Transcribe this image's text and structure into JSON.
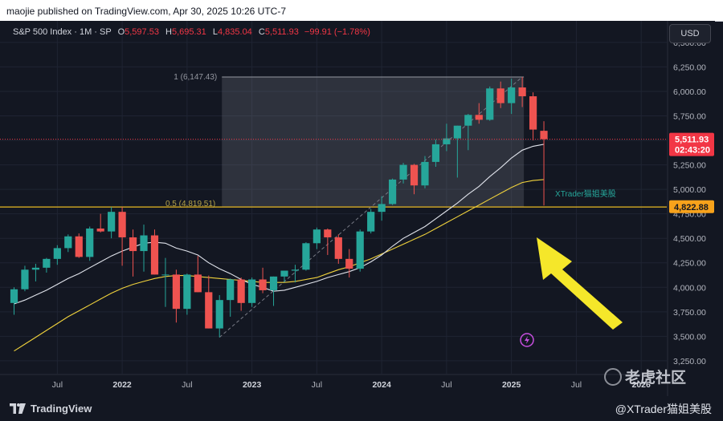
{
  "publisher_line": "maojie published on TradingView.com, Apr 30, 2025 10:26 UTC-7",
  "legend": {
    "symbol": "S&P 500 Index · 1M · SP",
    "o_label": "O",
    "o": "5,597.53",
    "h_label": "H",
    "h": "5,695.31",
    "l_label": "L",
    "l": "4,835.04",
    "c_label": "C",
    "c": "5,511.93",
    "chg": "−99.91 (−1.78%)"
  },
  "currency_button": "USD",
  "footer": {
    "brand": "TradingView",
    "handle": "@XTrader猫姐美股"
  },
  "watermark_site": "老虎社区",
  "colors": {
    "bg": "#131722",
    "up": "#26a69a",
    "down": "#ef5350",
    "ma_fast": "#e0e3eb",
    "ma_slow": "#f0d23c",
    "level": "#e8b923",
    "arrow": "#f5e72a",
    "price_badge": "#f23645",
    "level_badge": "#f7a21b"
  },
  "chart_data": {
    "type": "candlestick",
    "interval": "1M",
    "ylim": [
      3200,
      6720
    ],
    "y_ticks": [
      3250,
      3500,
      3750,
      4000,
      4250,
      4500,
      4750,
      5000,
      5250,
      5500,
      5750,
      6000,
      6250,
      6500
    ],
    "y_tick_labels": [
      "3,250.00",
      "3,500.00",
      "3,750.00",
      "4,000.00",
      "4,250.00",
      "4,500.00",
      "4,750.00",
      "5,000.00",
      "5,250.00",
      "5,500.00",
      "5,750.00",
      "6,000.00",
      "6,250.00",
      "6,500.00"
    ],
    "x_ticks": [
      {
        "label": "Jul",
        "date": "2021-07",
        "bold": false
      },
      {
        "label": "2022",
        "date": "2022-01",
        "bold": true
      },
      {
        "label": "Jul",
        "date": "2022-07",
        "bold": false
      },
      {
        "label": "2023",
        "date": "2023-01",
        "bold": true
      },
      {
        "label": "Jul",
        "date": "2023-07",
        "bold": false
      },
      {
        "label": "2024",
        "date": "2024-01",
        "bold": true
      },
      {
        "label": "Jul",
        "date": "2024-07",
        "bold": false
      },
      {
        "label": "2025",
        "date": "2025-01",
        "bold": true
      },
      {
        "label": "Jul",
        "date": "2025-07",
        "bold": false
      },
      {
        "label": "2026",
        "date": "2026-01",
        "bold": true
      }
    ],
    "first_month": "2021-03",
    "candles": [
      {
        "date": "2021-03",
        "o": 3840,
        "h": 4000,
        "l": 3720,
        "c": 3980
      },
      {
        "date": "2021-04",
        "o": 3980,
        "h": 4220,
        "l": 3960,
        "c": 4180
      },
      {
        "date": "2021-05",
        "o": 4180,
        "h": 4240,
        "l": 4060,
        "c": 4200
      },
      {
        "date": "2021-06",
        "o": 4200,
        "h": 4300,
        "l": 4150,
        "c": 4290
      },
      {
        "date": "2021-07",
        "o": 4290,
        "h": 4430,
        "l": 4230,
        "c": 4400
      },
      {
        "date": "2021-08",
        "o": 4400,
        "h": 4540,
        "l": 4360,
        "c": 4520
      },
      {
        "date": "2021-09",
        "o": 4520,
        "h": 4550,
        "l": 4300,
        "c": 4310
      },
      {
        "date": "2021-10",
        "o": 4310,
        "h": 4620,
        "l": 4270,
        "c": 4600
      },
      {
        "date": "2021-11",
        "o": 4600,
        "h": 4750,
        "l": 4560,
        "c": 4570
      },
      {
        "date": "2021-12",
        "o": 4570,
        "h": 4820,
        "l": 4500,
        "c": 4770
      },
      {
        "date": "2022-01",
        "o": 4770,
        "h": 4820,
        "l": 4220,
        "c": 4510
      },
      {
        "date": "2022-02",
        "o": 4510,
        "h": 4590,
        "l": 4110,
        "c": 4370
      },
      {
        "date": "2022-03",
        "o": 4370,
        "h": 4640,
        "l": 4160,
        "c": 4530
      },
      {
        "date": "2022-04",
        "o": 4530,
        "h": 4590,
        "l": 4130,
        "c": 4130
      },
      {
        "date": "2022-05",
        "o": 4130,
        "h": 4300,
        "l": 3800,
        "c": 4130
      },
      {
        "date": "2022-06",
        "o": 4130,
        "h": 4180,
        "l": 3640,
        "c": 3780
      },
      {
        "date": "2022-07",
        "o": 3780,
        "h": 4140,
        "l": 3720,
        "c": 4130
      },
      {
        "date": "2022-08",
        "o": 4130,
        "h": 4320,
        "l": 3950,
        "c": 3950
      },
      {
        "date": "2022-09",
        "o": 3950,
        "h": 4120,
        "l": 3580,
        "c": 3580
      },
      {
        "date": "2022-10",
        "o": 3580,
        "h": 3920,
        "l": 3490,
        "c": 3870
      },
      {
        "date": "2022-11",
        "o": 3870,
        "h": 4090,
        "l": 3700,
        "c": 4080
      },
      {
        "date": "2022-12",
        "o": 4080,
        "h": 4100,
        "l": 3760,
        "c": 3840
      },
      {
        "date": "2023-01",
        "o": 3840,
        "h": 4100,
        "l": 3800,
        "c": 4080
      },
      {
        "date": "2023-02",
        "o": 4080,
        "h": 4200,
        "l": 3940,
        "c": 3970
      },
      {
        "date": "2023-03",
        "o": 3970,
        "h": 4110,
        "l": 3810,
        "c": 4110
      },
      {
        "date": "2023-04",
        "o": 4110,
        "h": 4170,
        "l": 4050,
        "c": 4170
      },
      {
        "date": "2023-05",
        "o": 4170,
        "h": 4230,
        "l": 4050,
        "c": 4180
      },
      {
        "date": "2023-06",
        "o": 4180,
        "h": 4460,
        "l": 4170,
        "c": 4450
      },
      {
        "date": "2023-07",
        "o": 4450,
        "h": 4610,
        "l": 4390,
        "c": 4590
      },
      {
        "date": "2023-08",
        "o": 4590,
        "h": 4600,
        "l": 4330,
        "c": 4510
      },
      {
        "date": "2023-09",
        "o": 4510,
        "h": 4540,
        "l": 4240,
        "c": 4290
      },
      {
        "date": "2023-10",
        "o": 4290,
        "h": 4390,
        "l": 4100,
        "c": 4190
      },
      {
        "date": "2023-11",
        "o": 4190,
        "h": 4590,
        "l": 4160,
        "c": 4570
      },
      {
        "date": "2023-12",
        "o": 4570,
        "h": 4800,
        "l": 4550,
        "c": 4770
      },
      {
        "date": "2024-01",
        "o": 4770,
        "h": 4930,
        "l": 4680,
        "c": 4850
      },
      {
        "date": "2024-02",
        "o": 4850,
        "h": 5110,
        "l": 4840,
        "c": 5100
      },
      {
        "date": "2024-03",
        "o": 5100,
        "h": 5270,
        "l": 5060,
        "c": 5250
      },
      {
        "date": "2024-04",
        "o": 5250,
        "h": 5260,
        "l": 4950,
        "c": 5040
      },
      {
        "date": "2024-05",
        "o": 5040,
        "h": 5340,
        "l": 5010,
        "c": 5280
      },
      {
        "date": "2024-06",
        "o": 5280,
        "h": 5510,
        "l": 5230,
        "c": 5460
      },
      {
        "date": "2024-07",
        "o": 5460,
        "h": 5670,
        "l": 5390,
        "c": 5520
      },
      {
        "date": "2024-08",
        "o": 5520,
        "h": 5650,
        "l": 5120,
        "c": 5650
      },
      {
        "date": "2024-09",
        "o": 5650,
        "h": 5770,
        "l": 5400,
        "c": 5760
      },
      {
        "date": "2024-10",
        "o": 5760,
        "h": 5880,
        "l": 5670,
        "c": 5710
      },
      {
        "date": "2024-11",
        "o": 5710,
        "h": 6050,
        "l": 5700,
        "c": 6030
      },
      {
        "date": "2024-12",
        "o": 6030,
        "h": 6100,
        "l": 5830,
        "c": 5880
      },
      {
        "date": "2025-01",
        "o": 5880,
        "h": 6130,
        "l": 5770,
        "c": 6040
      },
      {
        "date": "2025-02",
        "o": 6040,
        "h": 6147.43,
        "l": 5840,
        "c": 5950
      },
      {
        "date": "2025-03",
        "o": 5950,
        "h": 5990,
        "l": 5500,
        "c": 5610
      },
      {
        "date": "2025-04",
        "o": 5597.53,
        "h": 5695.31,
        "l": 4835.04,
        "c": 5511.93
      }
    ],
    "ma_fast": [
      3830,
      3870,
      3920,
      3970,
      4030,
      4090,
      4140,
      4200,
      4260,
      4320,
      4370,
      4410,
      4450,
      4460,
      4450,
      4400,
      4370,
      4330,
      4250,
      4190,
      4140,
      4080,
      4030,
      4000,
      3960,
      3970,
      4000,
      4030,
      4060,
      4100,
      4130,
      4160,
      4200,
      4260,
      4330,
      4420,
      4500,
      4560,
      4620,
      4700,
      4780,
      4860,
      4950,
      5030,
      5130,
      5220,
      5320,
      5400,
      5440,
      5460
    ],
    "ma_slow": [
      3350,
      3420,
      3490,
      3560,
      3630,
      3700,
      3760,
      3820,
      3880,
      3940,
      3990,
      4030,
      4060,
      4090,
      4110,
      4120,
      4120,
      4110,
      4100,
      4090,
      4080,
      4070,
      4060,
      4050,
      4050,
      4050,
      4060,
      4080,
      4100,
      4140,
      4180,
      4210,
      4250,
      4290,
      4340,
      4390,
      4440,
      4490,
      4540,
      4600,
      4660,
      4720,
      4780,
      4840,
      4900,
      4960,
      5020,
      5070,
      5090,
      5100
    ],
    "fib": {
      "level_1_label": "1 (6,147.43)",
      "level_1": 6147.43,
      "level_05_label": "0.5 (4,819.51)",
      "level_05": 4819.51,
      "from": "2022-10",
      "to": "2025-02"
    },
    "trend_line": {
      "from": "2022-10",
      "from_value": 3490,
      "to": "2025-02",
      "to_value": 6147.43
    },
    "current_price_label": "5,511.93",
    "countdown_label": "02:43:20",
    "level_price_label": "4,822.88",
    "level_price": 4822.88,
    "annotation": "XTrader猫姐美股"
  }
}
